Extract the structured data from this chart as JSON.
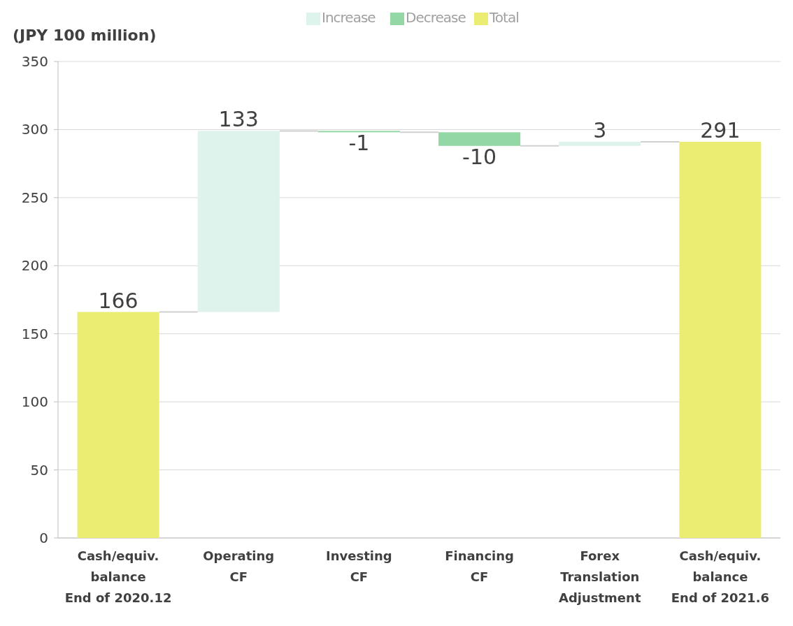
{
  "chart_data": {
    "type": "bar",
    "ylabel": "(JPY 100 million)",
    "categories": [
      "Cash/equiv.\nbalance\nEnd of 2020.12",
      "Operating\nCF",
      "Investing\nCF",
      "Financing\nCF",
      "Forex\nTranslation\nAdjustment",
      "Cash/equiv.\nbalance\nEnd of 2021.6"
    ],
    "series": [
      {
        "name": "Increase",
        "color": "#ddf3ec",
        "values": [
          null,
          133,
          null,
          null,
          3,
          null
        ],
        "base": [
          null,
          166,
          null,
          null,
          288,
          null
        ]
      },
      {
        "name": "Decrease",
        "color": "#93d7a4",
        "values": [
          null,
          null,
          -1,
          -10,
          null,
          null
        ],
        "base": [
          null,
          null,
          299,
          298,
          null,
          null
        ]
      },
      {
        "name": "Total",
        "color": "#eaed72",
        "values": [
          166,
          null,
          null,
          null,
          null,
          291
        ],
        "base": [
          0,
          null,
          null,
          null,
          null,
          0
        ]
      }
    ],
    "ylim": [
      0,
      350
    ],
    "yticks": [
      0,
      50,
      100,
      150,
      200,
      250,
      300,
      350
    ],
    "grid": "y",
    "legend": "top",
    "data_labels": true
  }
}
